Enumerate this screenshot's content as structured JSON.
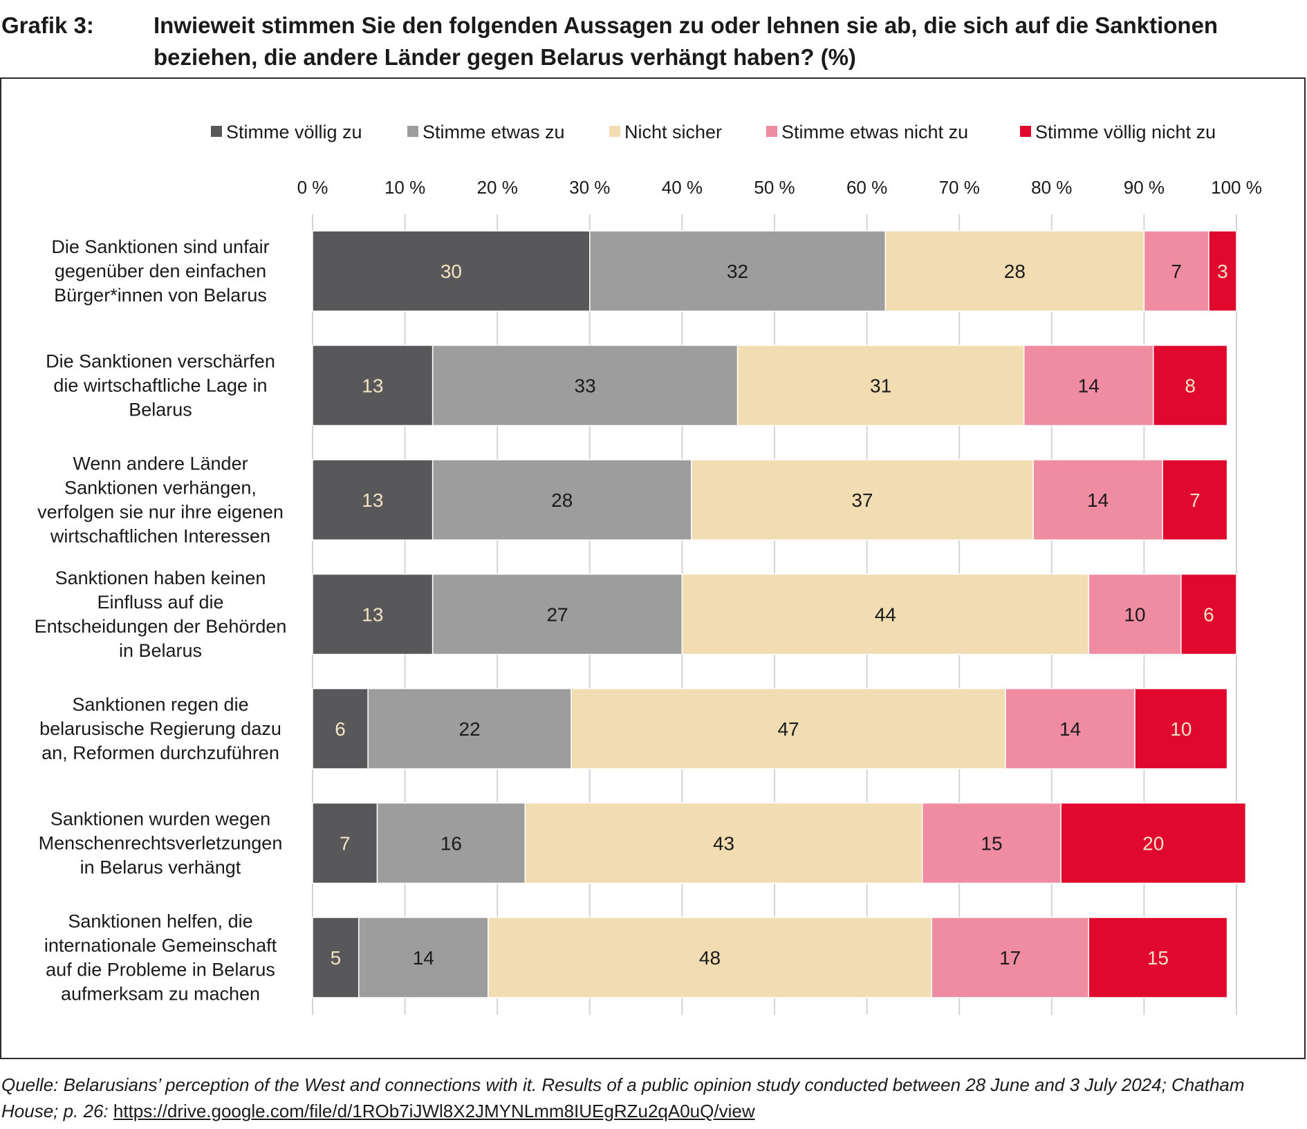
{
  "header": {
    "number": "Grafik 3:",
    "title": "Inwieweit stimmen Sie den folgenden Aussagen zu oder lehnen sie ab, die sich auf die Sanktionen beziehen, die andere Länder gegen Belarus verhängt haben? (%)"
  },
  "chart_data": {
    "type": "bar",
    "orientation": "horizontal",
    "stacked": true,
    "title": "Inwieweit stimmen Sie den folgenden Aussagen zu oder lehnen sie ab, die sich auf die Sanktionen beziehen, die andere Länder gegen Belarus verhängt haben? (%)",
    "xlabel": "",
    "ylabel": "",
    "xlim": [
      0,
      100
    ],
    "x_ticks": [
      "0 %",
      "10 %",
      "20 %",
      "30 %",
      "40 %",
      "50 %",
      "60 %",
      "70 %",
      "80 %",
      "90 %",
      "100 %"
    ],
    "grid": true,
    "legend_position": "top",
    "categories": [
      [
        "Die Sanktionen sind unfair",
        "gegenüber den einfachen",
        "Bürger*innen von Belarus"
      ],
      [
        "Die Sanktionen verschärfen",
        "die wirtschaftliche Lage in",
        "Belarus"
      ],
      [
        "Wenn andere Länder",
        "Sanktionen verhängen,",
        "verfolgen sie nur ihre eigenen",
        "wirtschaftlichen Interessen"
      ],
      [
        "Sanktionen haben keinen",
        "Einfluss auf die",
        "Entscheidungen der Behörden",
        "in Belarus"
      ],
      [
        "Sanktionen regen die",
        "belarusische Regierung dazu",
        "an, Reformen durchzuführen"
      ],
      [
        "Sanktionen wurden wegen",
        "Menschenrechtsverletzungen",
        "in Belarus verhängt"
      ],
      [
        "Sanktionen helfen, die",
        "internationale Gemeinschaft",
        "auf die Probleme in Belarus",
        "aufmerksam zu machen"
      ]
    ],
    "series": [
      {
        "name": "Stimme völlig zu",
        "color": "#58585a",
        "label_color": "#f2e4c4",
        "values": [
          30,
          13,
          13,
          13,
          6,
          7,
          5
        ]
      },
      {
        "name": "Stimme etwas zu",
        "color": "#9d9d9e",
        "label_color": "#1a1a1a",
        "values": [
          32,
          33,
          28,
          27,
          22,
          16,
          14
        ]
      },
      {
        "name": "Nicht sicher",
        "color": "#f2ddb3",
        "label_color": "#1a1a1a",
        "values": [
          28,
          31,
          37,
          44,
          47,
          43,
          48
        ]
      },
      {
        "name": "Stimme etwas nicht zu",
        "color": "#ef8ca2",
        "label_color": "#1a1a1a",
        "values": [
          7,
          14,
          14,
          10,
          14,
          15,
          17
        ]
      },
      {
        "name": "Stimme völlig nicht zu",
        "color": "#e0082c",
        "label_color": "#f2e4c4",
        "values": [
          3,
          8,
          7,
          6,
          10,
          20,
          15
        ]
      }
    ]
  },
  "source": {
    "text": "Quelle: Belarusians’ perception of the West and connections with it. Results of a public opinion study conducted between 28 June and 3 July 2024; Chatham House; p. 26: ",
    "link": "https://drive.google.com/file/d/1ROb7iJWl8X2JMYNLmm8IUEgRZu2qA0uQ/view"
  }
}
